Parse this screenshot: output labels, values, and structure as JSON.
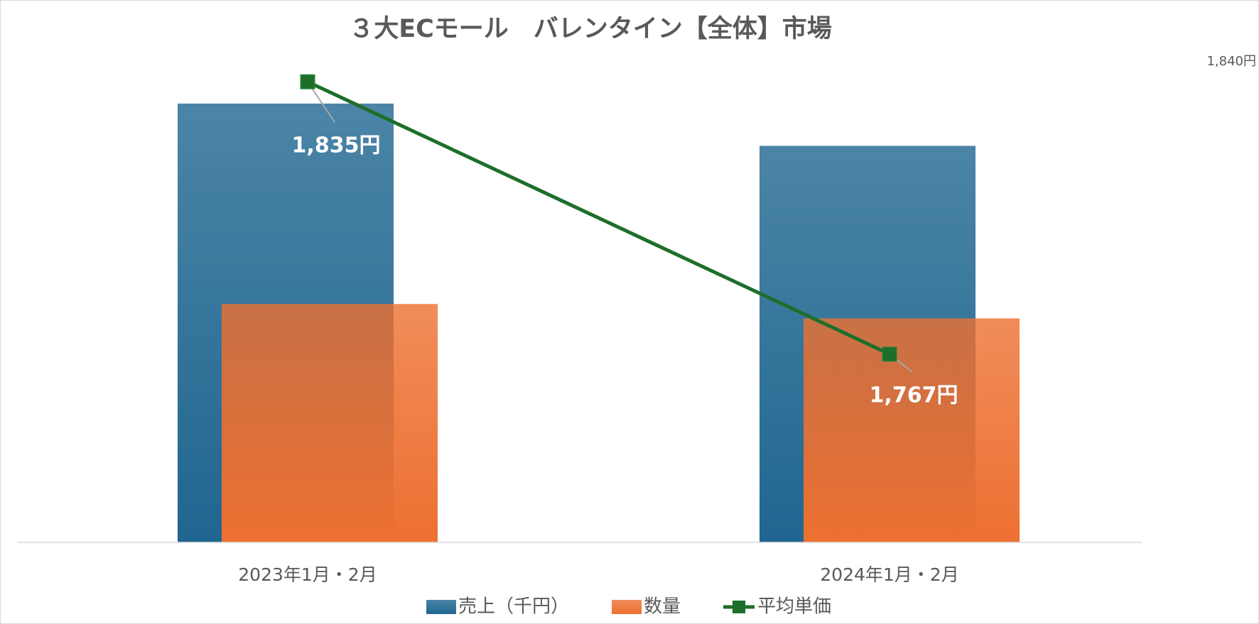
{
  "chart_data": {
    "type": "bar-line",
    "title": "３大ECモール　バレンタイン【全体】市場",
    "categories": [
      "2023年1月・2月",
      "2024年1月・2月"
    ],
    "series": [
      {
        "name": "売上（千円）",
        "type": "bar",
        "color": "#1f6690",
        "values": [
          91.3,
          82.5
        ]
      },
      {
        "name": "数量",
        "type": "bar",
        "color": "#ed7031",
        "values": [
          49.6,
          46.6
        ]
      },
      {
        "name": "平均単価",
        "type": "line",
        "axis": "y2",
        "color": "#1e6e2a",
        "values": [
          1835,
          1767
        ],
        "value_labels": [
          "1,835円",
          "1,767円"
        ]
      }
    ],
    "ylim": [
      0,
      100
    ],
    "y2lim": [
      1720,
      1840
    ],
    "y2ticks": [
      {
        "value": 1840,
        "label": "1,840円"
      }
    ]
  }
}
